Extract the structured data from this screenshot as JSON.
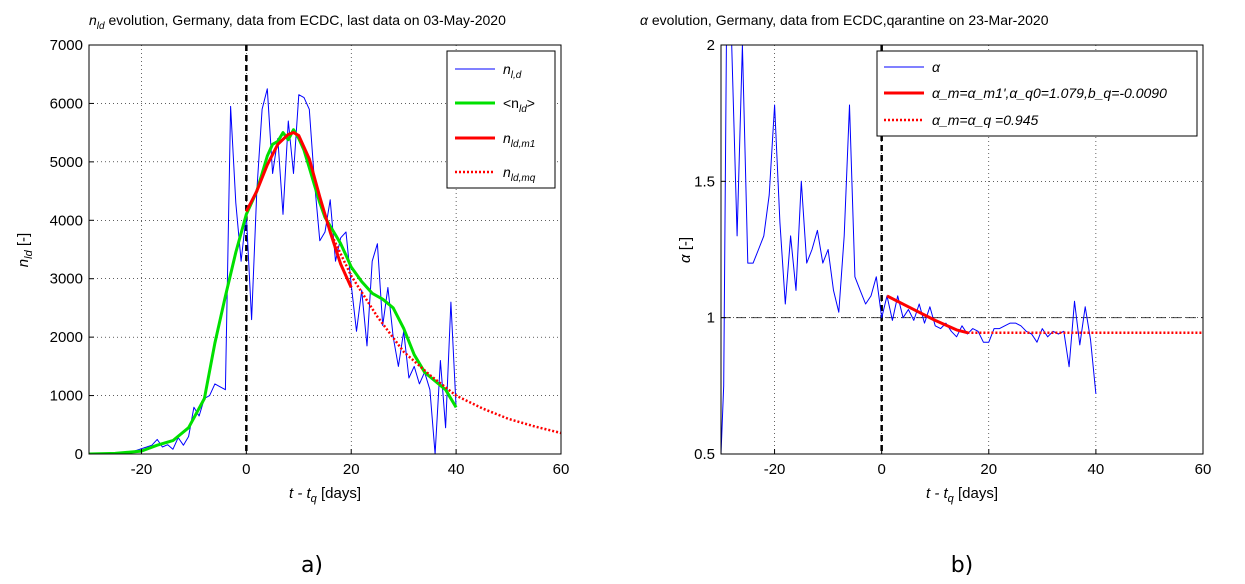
{
  "captions": {
    "left": "a)",
    "right": "b)"
  },
  "chart_data": [
    {
      "type": "line",
      "title_parts": {
        "sym": "n",
        "sub": "ld",
        "rest": " evolution, Germany, data from ECDC, last data on 03-May-2020"
      },
      "xlabel_parts": {
        "a": "t - t",
        "sub": "q",
        "b": " [days]"
      },
      "ylabel_parts": {
        "sym": "n",
        "sub": "ld",
        "rest": " [-]"
      },
      "xlim": [
        -30,
        60
      ],
      "ylim": [
        0,
        7000
      ],
      "xticks": [
        -20,
        0,
        20,
        40,
        60
      ],
      "yticks": [
        0,
        1000,
        2000,
        3000,
        4000,
        5000,
        6000,
        7000
      ],
      "xtick_labels": [
        "-20",
        "0",
        "20",
        "40",
        "60"
      ],
      "ytick_labels": [
        "0",
        "1000",
        "2000",
        "3000",
        "4000",
        "5000",
        "6000",
        "7000"
      ],
      "grid": true,
      "legend_position": "top-right",
      "vline": {
        "x": 0,
        "style": "dashed",
        "color": "#000000"
      },
      "series": [
        {
          "label": {
            "sym": "n",
            "sub": "l,d"
          },
          "color": "#0000ff",
          "style": "solid",
          "x": [
            -30,
            -29,
            -28,
            -27,
            -26,
            -25,
            -24,
            -23,
            -22,
            -21,
            -20,
            -19,
            -18,
            -17,
            -16,
            -15,
            -14,
            -13,
            -12,
            -11,
            -10,
            -9,
            -8,
            -7,
            -6,
            -5,
            -4,
            -3,
            -2,
            -1,
            0,
            1,
            2,
            3,
            4,
            5,
            6,
            7,
            8,
            9,
            10,
            11,
            12,
            13,
            14,
            15,
            16,
            17,
            18,
            19,
            20,
            21,
            22,
            23,
            24,
            25,
            26,
            27,
            28,
            29,
            30,
            31,
            32,
            33,
            34,
            35,
            36,
            37,
            38,
            39,
            40
          ],
          "y": [
            0,
            0,
            0,
            0,
            0,
            5,
            10,
            20,
            30,
            60,
            90,
            120,
            150,
            250,
            120,
            160,
            80,
            280,
            150,
            300,
            800,
            650,
            950,
            1000,
            1200,
            1150,
            1100,
            5950,
            4300,
            3300,
            4100,
            2300,
            4500,
            5900,
            6250,
            4800,
            5400,
            4100,
            5700,
            4800,
            6150,
            6100,
            5900,
            4650,
            3650,
            3800,
            4350,
            3300,
            3700,
            3800,
            2900,
            2100,
            2800,
            1850,
            3300,
            3600,
            2200,
            2850,
            2000,
            1500,
            2100,
            1300,
            1500,
            1200,
            1400,
            1100,
            0,
            1600,
            450,
            2600,
            800
          ]
        },
        {
          "label": {
            "sym": "<n",
            "sub": "ld",
            "end": ">"
          },
          "color": "#00e000",
          "style": "solid",
          "x": [
            -30,
            -25,
            -20,
            -17,
            -14,
            -11,
            -8,
            -6,
            -4,
            -2,
            0,
            1,
            2,
            3,
            4,
            5,
            6,
            7,
            8,
            9,
            10,
            11,
            12,
            13,
            14,
            15,
            16,
            17,
            18,
            19,
            20,
            22,
            24,
            26,
            28,
            30,
            32,
            34,
            36,
            38,
            40
          ],
          "y": [
            0,
            10,
            50,
            150,
            230,
            450,
            950,
            1900,
            2700,
            3450,
            4100,
            4300,
            4500,
            4800,
            5100,
            5300,
            5350,
            5500,
            5380,
            5550,
            5400,
            5200,
            4900,
            4600,
            4300,
            4050,
            3900,
            3750,
            3600,
            3400,
            3200,
            2950,
            2750,
            2650,
            2500,
            2150,
            1700,
            1400,
            1250,
            1100,
            800
          ]
        },
        {
          "label": {
            "sym": "n",
            "sub": "ld,m1"
          },
          "color": "#ff0000",
          "style": "solid",
          "x": [
            0,
            2,
            4,
            6,
            8,
            9,
            10,
            12,
            14,
            16,
            18,
            20
          ],
          "y": [
            4150,
            4500,
            4950,
            5300,
            5470,
            5500,
            5450,
            5050,
            4400,
            3800,
            3250,
            2850
          ]
        },
        {
          "label": {
            "sym": "n",
            "sub": "ld,mq"
          },
          "color": "#ff0000",
          "style": "dotted",
          "x": [
            16,
            20,
            25,
            30,
            35,
            40,
            45,
            50,
            55,
            60
          ],
          "y": [
            3800,
            3050,
            2350,
            1750,
            1350,
            1000,
            780,
            600,
            470,
            360
          ]
        }
      ]
    },
    {
      "type": "line",
      "title_parts": {
        "sym": "α",
        "rest": " evolution, Germany, data from ECDC,qarantine on 23-Mar-2020"
      },
      "xlabel_parts": {
        "a": "t - t",
        "sub": "q",
        "b": " [days]"
      },
      "ylabel_parts": {
        "sym": "α",
        "rest": " [-]"
      },
      "xlim": [
        -30,
        60
      ],
      "ylim": [
        0.5,
        2
      ],
      "xticks": [
        -20,
        0,
        20,
        40,
        60
      ],
      "yticks": [
        0.5,
        1,
        1.5,
        2
      ],
      "xtick_labels": [
        "-20",
        "0",
        "20",
        "40",
        "60"
      ],
      "ytick_labels": [
        "0.5",
        "1",
        "1.5",
        "2"
      ],
      "grid": true,
      "legend_position": "top-right",
      "vline": {
        "x": 0,
        "style": "dashed",
        "color": "#000000"
      },
      "hline": {
        "y": 1,
        "style": "dashed",
        "color": "#000000"
      },
      "series": [
        {
          "label": {
            "sym": "α"
          },
          "color": "#0000ff",
          "style": "solid",
          "x": [
            -30,
            -29.5,
            -29,
            -28,
            -27,
            -26,
            -25,
            -24,
            -23,
            -22,
            -21,
            -20,
            -19,
            -18,
            -17,
            -16,
            -15,
            -14,
            -13,
            -12,
            -11,
            -10,
            -9,
            -8,
            -7,
            -6,
            -5,
            -4,
            -3,
            -2,
            -1,
            0,
            1,
            2,
            3,
            4,
            5,
            6,
            7,
            8,
            9,
            10,
            11,
            12,
            13,
            14,
            15,
            16,
            17,
            18,
            19,
            20,
            21,
            22,
            23,
            24,
            25,
            26,
            27,
            28,
            29,
            30,
            31,
            32,
            33,
            34,
            35,
            36,
            37,
            38,
            39,
            40
          ],
          "y": [
            0.5,
            0.75,
            2.0,
            2.0,
            1.3,
            2.0,
            1.2,
            1.2,
            1.25,
            1.3,
            1.45,
            1.78,
            1.35,
            1.05,
            1.3,
            1.1,
            1.5,
            1.2,
            1.25,
            1.32,
            1.2,
            1.25,
            1.1,
            1.02,
            1.3,
            1.78,
            1.15,
            1.1,
            1.05,
            1.08,
            1.15,
            1.0,
            1.08,
            0.99,
            1.08,
            1.0,
            1.03,
            0.99,
            1.05,
            0.98,
            1.04,
            0.97,
            0.96,
            0.98,
            0.95,
            0.93,
            0.97,
            0.94,
            0.96,
            0.95,
            0.91,
            0.91,
            0.96,
            0.96,
            0.97,
            0.98,
            0.98,
            0.97,
            0.95,
            0.94,
            0.91,
            0.96,
            0.93,
            0.95,
            0.94,
            0.95,
            0.82,
            1.06,
            0.9,
            1.04,
            0.92,
            0.72
          ]
        },
        {
          "label": {
            "text": "α_m=α_m1',α_q0=1.079,b_q=-0.0090"
          },
          "color": "#ff0000",
          "style": "solid",
          "x": [
            1,
            5,
            10,
            14,
            16
          ],
          "y": [
            1.08,
            1.04,
            0.99,
            0.955,
            0.945
          ]
        },
        {
          "label": {
            "text": "α_m=α_q =0.945"
          },
          "color": "#ff0000",
          "style": "dotted",
          "x": [
            16,
            60
          ],
          "y": [
            0.945,
            0.945
          ]
        }
      ]
    }
  ]
}
